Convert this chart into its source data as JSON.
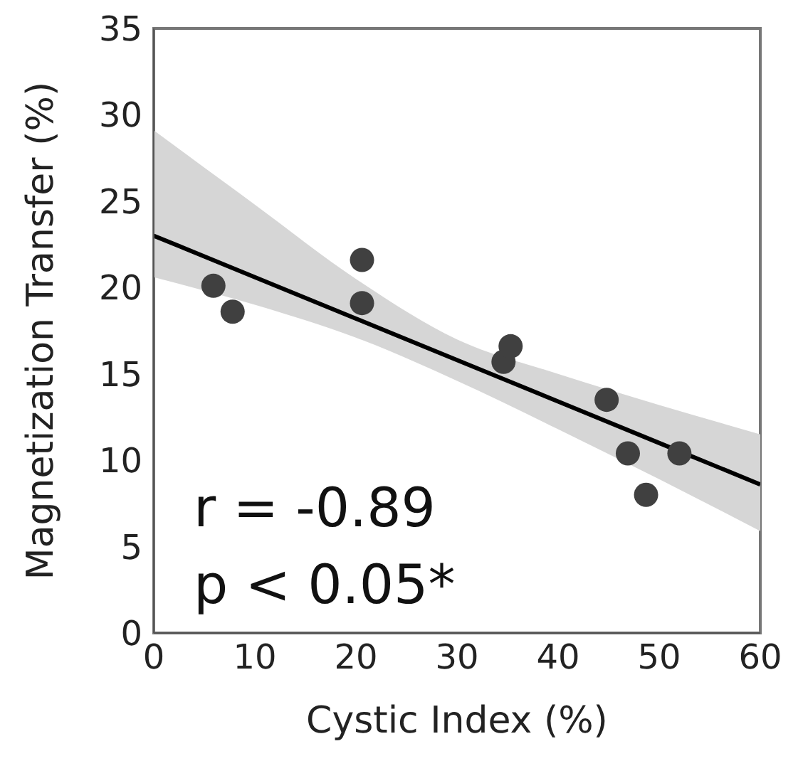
{
  "chart_data": {
    "type": "scatter",
    "xlabel": "Cystic Index (%)",
    "ylabel": "Magnetization Transfer (%)",
    "xlim": [
      0,
      60
    ],
    "xticks": [
      0,
      10,
      20,
      30,
      40,
      50,
      60
    ],
    "ylim": [
      0,
      35
    ],
    "yticks": [
      0,
      5,
      10,
      15,
      20,
      25,
      30,
      35
    ],
    "grid": false,
    "legend": false,
    "marker": "circle",
    "annotations": [
      "r = -0.89",
      "p < 0.05*"
    ],
    "series": [
      {
        "color": "#404040",
        "x": [
          5.9,
          7.8,
          20.6,
          20.6,
          34.6,
          35.3,
          44.8,
          46.9,
          48.7,
          52.0
        ],
        "values": [
          20.1,
          18.6,
          21.6,
          19.1,
          15.7,
          16.6,
          13.5,
          10.4,
          8.0,
          10.4
        ]
      },
      {
        "type": "line",
        "color": "#000000",
        "marker": "none",
        "line_style": "solid",
        "x": [
          0,
          10,
          20,
          30,
          40,
          50,
          60
        ],
        "values": [
          23.0,
          20.6,
          18.2,
          15.8,
          13.4,
          11.0,
          8.6
        ],
        "lower": [
          20.6,
          19.0,
          17.1,
          14.6,
          11.8,
          8.9,
          5.9
        ],
        "upper": [
          29.1,
          24.8,
          20.5,
          17.0,
          15.0,
          13.2,
          11.5
        ]
      }
    ]
  }
}
